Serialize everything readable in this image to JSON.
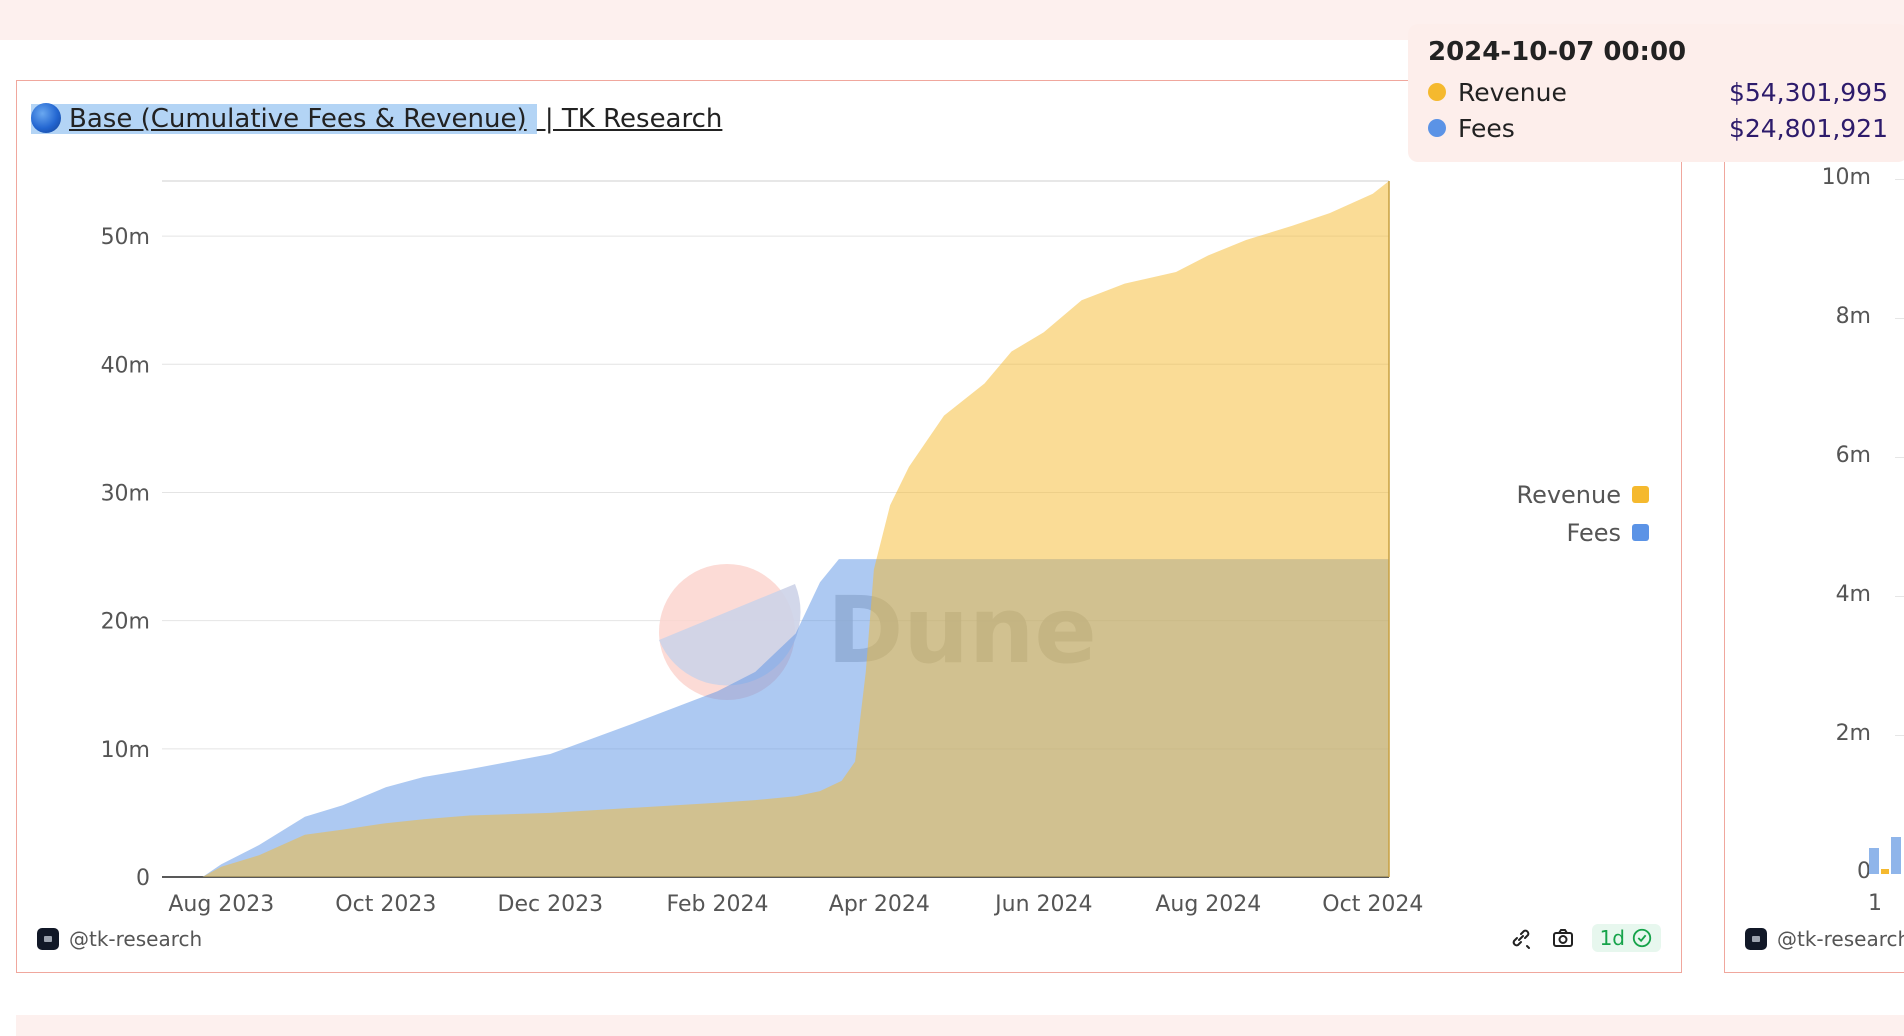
{
  "panel": {
    "title_selected": "Base (Cumulative Fees & Revenue)",
    "title_rest": " | TK Research",
    "footer_user": "@tk-research",
    "freshness": "1d"
  },
  "watermark": {
    "text": "Dune"
  },
  "tooltip": {
    "date": "2024-10-07 00:00",
    "rows": [
      {
        "name": "Revenue",
        "value": "$54,301,995",
        "color": "#f5b92e"
      },
      {
        "name": "Fees",
        "value": "$24,801,921",
        "color": "#5b93e6"
      }
    ]
  },
  "colors": {
    "revenue": "#f5b92e",
    "fees": "#5b93e6",
    "panel_border": "#f0a79d",
    "background_band": "#fdf0ee"
  },
  "icons": {
    "tooltip_icon": "chart-tooltip",
    "camera": "camera-icon",
    "check": "check-badge-icon",
    "chain": "chain-icon"
  },
  "chart_data": {
    "type": "area",
    "title": "Base (Cumulative Fees & Revenue) | TK Research",
    "xlabel": "",
    "ylabel": "",
    "x_tick_labels": [
      "Aug 2023",
      "Oct 2023",
      "Dec 2023",
      "Feb 2024",
      "Apr 2024",
      "Jun 2024",
      "Aug 2024",
      "Oct 2024"
    ],
    "y_tick_labels": [
      "0",
      "10m",
      "20m",
      "30m",
      "40m",
      "50m"
    ],
    "ylim": [
      0,
      54301995
    ],
    "xlim": [
      "2023-07-10",
      "2024-10-07"
    ],
    "grid": true,
    "legend_position": "right",
    "stacked": false,
    "series": [
      {
        "name": "Revenue",
        "points": [
          [
            "2023-07-10",
            0
          ],
          [
            "2023-07-25",
            0
          ],
          [
            "2023-08-01",
            800000
          ],
          [
            "2023-08-15",
            1700000
          ],
          [
            "2023-09-01",
            3300000
          ],
          [
            "2023-09-15",
            3700000
          ],
          [
            "2023-10-01",
            4200000
          ],
          [
            "2023-10-15",
            4500000
          ],
          [
            "2023-11-01",
            4800000
          ],
          [
            "2023-12-01",
            5000000
          ],
          [
            "2024-01-01",
            5400000
          ],
          [
            "2024-02-01",
            5800000
          ],
          [
            "2024-02-15",
            6000000
          ],
          [
            "2024-03-01",
            6300000
          ],
          [
            "2024-03-10",
            6700000
          ],
          [
            "2024-03-18",
            7500000
          ],
          [
            "2024-03-23",
            9000000
          ],
          [
            "2024-03-27",
            16000000
          ],
          [
            "2024-03-30",
            24000000
          ],
          [
            "2024-04-05",
            29000000
          ],
          [
            "2024-04-12",
            32000000
          ],
          [
            "2024-04-25",
            36000000
          ],
          [
            "2024-05-10",
            38500000
          ],
          [
            "2024-05-20",
            41000000
          ],
          [
            "2024-06-01",
            42500000
          ],
          [
            "2024-06-15",
            45000000
          ],
          [
            "2024-07-01",
            46300000
          ],
          [
            "2024-07-20",
            47200000
          ],
          [
            "2024-08-01",
            48500000
          ],
          [
            "2024-08-15",
            49700000
          ],
          [
            "2024-09-01",
            50800000
          ],
          [
            "2024-09-15",
            51800000
          ],
          [
            "2024-10-01",
            53300000
          ],
          [
            "2024-10-07",
            54301995
          ]
        ]
      },
      {
        "name": "Fees",
        "points": [
          [
            "2023-07-10",
            0
          ],
          [
            "2023-07-25",
            0
          ],
          [
            "2023-08-01",
            1000000
          ],
          [
            "2023-08-15",
            2500000
          ],
          [
            "2023-09-01",
            4700000
          ],
          [
            "2023-09-15",
            5600000
          ],
          [
            "2023-10-01",
            7000000
          ],
          [
            "2023-10-15",
            7800000
          ],
          [
            "2023-11-01",
            8400000
          ],
          [
            "2023-12-01",
            9600000
          ],
          [
            "2024-01-01",
            12000000
          ],
          [
            "2024-02-01",
            14500000
          ],
          [
            "2024-02-15",
            16000000
          ],
          [
            "2024-03-01",
            19000000
          ],
          [
            "2024-03-10",
            23000000
          ],
          [
            "2024-03-17",
            24801921
          ],
          [
            "2024-10-07",
            24801921
          ]
        ]
      }
    ]
  }
}
